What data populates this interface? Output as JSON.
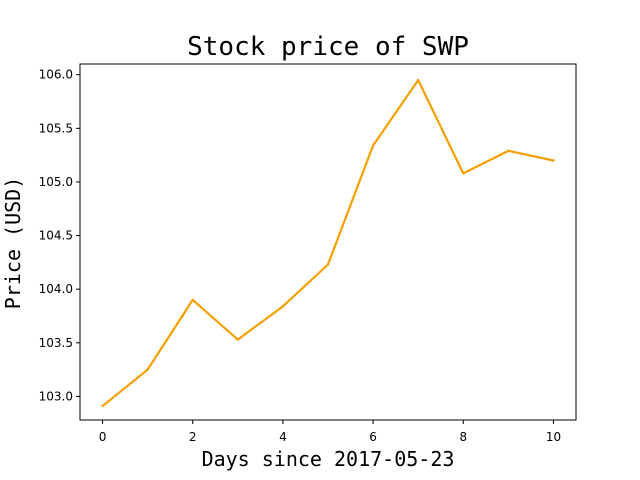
{
  "chart_data": {
    "type": "line",
    "title": "Stock price of SWP",
    "xlabel": "Days since 2017-05-23",
    "ylabel": "Price (USD)",
    "x": [
      0,
      1,
      2,
      3,
      4,
      5,
      6,
      7,
      8,
      9,
      10
    ],
    "series": [
      {
        "values": [
          102.91,
          103.25,
          103.9,
          103.53,
          103.84,
          104.23,
          105.34,
          105.95,
          105.08,
          105.29,
          105.2
        ],
        "color": "#f5a000"
      }
    ],
    "xticks": [
      "0",
      "2",
      "4",
      "6",
      "8",
      "10"
    ],
    "yticks": [
      "103.0",
      "103.5",
      "104.0",
      "104.5",
      "105.0",
      "105.5",
      "106.0"
    ],
    "xlim": [
      -0.5,
      10.5
    ],
    "ylim": [
      102.78,
      106.1
    ],
    "grid": false,
    "legend": false
  }
}
